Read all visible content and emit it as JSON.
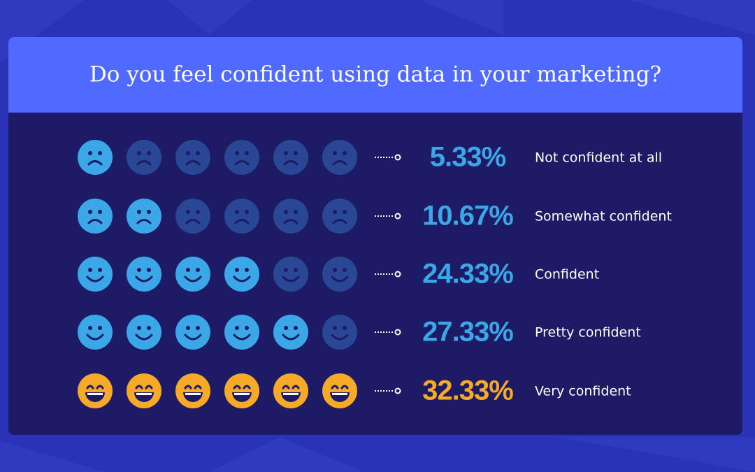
{
  "title": "Do you feel confident using data in your marketing?",
  "rows": [
    {
      "percent": "5.33%",
      "label": "Not confident at all"
    },
    {
      "percent": "10.67%",
      "label": "Somewhat confident"
    },
    {
      "percent": "24.33%",
      "label": "Confident"
    },
    {
      "percent": "27.33%",
      "label": "Pretty confident"
    },
    {
      "percent": "32.33%",
      "label": "Very confident"
    }
  ]
}
